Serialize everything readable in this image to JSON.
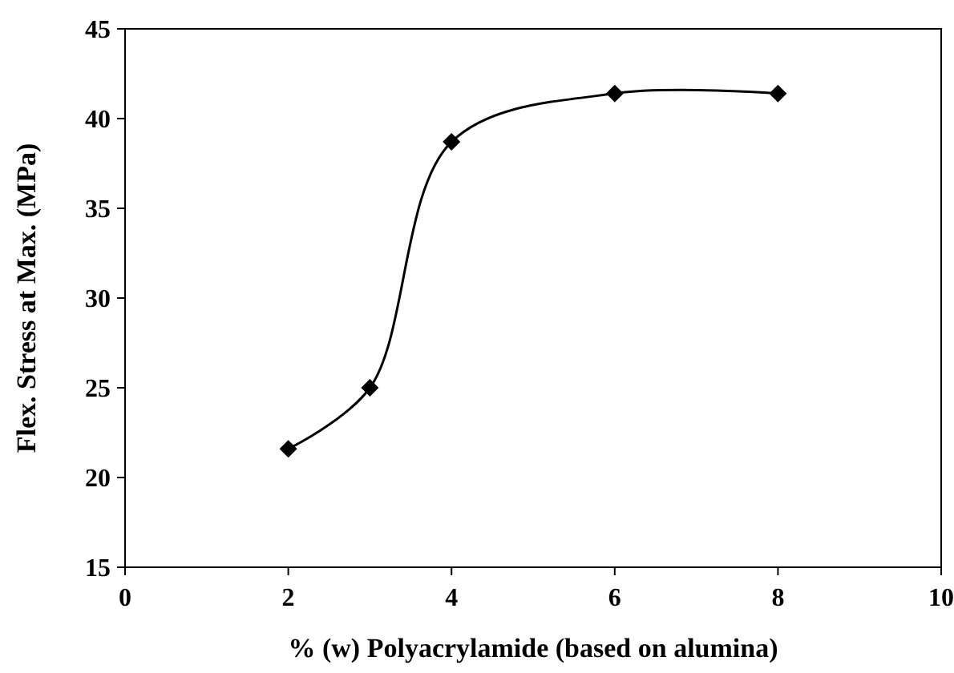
{
  "chart_data": {
    "type": "line",
    "xlabel": "% (w) Polyacrylamide (based on alumina)",
    "ylabel": "Flex. Stress at Max. (MPa)",
    "x": [
      2,
      3,
      4,
      6,
      8
    ],
    "series": [
      {
        "color": "#000000",
        "values": [
          21.6,
          25.0,
          38.7,
          41.4,
          41.4
        ]
      }
    ],
    "xlim": [
      0,
      10
    ],
    "xticks": [
      0,
      2,
      4,
      6,
      8,
      10
    ],
    "ylim": [
      15,
      45
    ],
    "yticks": [
      15,
      20,
      25,
      30,
      35,
      40,
      45
    ],
    "marker": "diamond",
    "line_style": "solid",
    "grid": false
  }
}
